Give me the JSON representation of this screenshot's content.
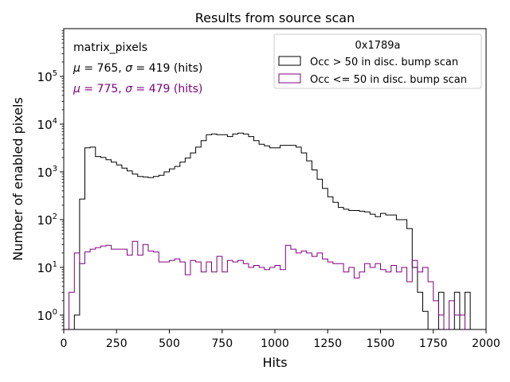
{
  "chart_data": {
    "type": "step-histogram",
    "title": "Results from source scan",
    "xlabel": "Hits",
    "ylabel": "Number of enabled pixels",
    "xlim": [
      0,
      2000
    ],
    "ylim": [
      0.5,
      1000000
    ],
    "yscale": "log",
    "xticks": [
      "0",
      "250",
      "500",
      "750",
      "1000",
      "1250",
      "1500",
      "1750",
      "2000"
    ],
    "yticks": [
      {
        "value": 1,
        "base": "10",
        "exp": "0"
      },
      {
        "value": 10,
        "base": "10",
        "exp": "1"
      },
      {
        "value": 100,
        "base": "10",
        "exp": "2"
      },
      {
        "value": 1000,
        "base": "10",
        "exp": "3"
      },
      {
        "value": 10000,
        "base": "10",
        "exp": "4"
      },
      {
        "value": 100000,
        "base": "10",
        "exp": "5"
      }
    ],
    "bin_width": 25,
    "legend": {
      "title": "0x1789a",
      "placement": "top-right"
    },
    "annotations": {
      "label": "matrix_pixels",
      "stats": [
        {
          "mu": "765",
          "sigma": "419",
          "unit": "(hits)",
          "color": "#000000"
        },
        {
          "mu": "775",
          "sigma": "479",
          "unit": "(hits)",
          "color": "#800080"
        }
      ]
    },
    "series": [
      {
        "name": "Occ > 50 in disc. bump scan",
        "color": "#000000",
        "bin_starts": [
          25,
          50,
          75,
          100,
          125,
          150,
          175,
          200,
          225,
          250,
          275,
          300,
          325,
          350,
          375,
          400,
          425,
          450,
          475,
          500,
          525,
          550,
          575,
          600,
          625,
          650,
          675,
          700,
          725,
          750,
          775,
          800,
          825,
          850,
          875,
          900,
          925,
          950,
          975,
          1000,
          1025,
          1050,
          1075,
          1100,
          1125,
          1150,
          1175,
          1200,
          1225,
          1250,
          1275,
          1300,
          1325,
          1350,
          1375,
          1400,
          1425,
          1450,
          1475,
          1500,
          1525,
          1550,
          1575,
          1600,
          1625,
          1650,
          1675,
          1700,
          1725,
          1750,
          1775,
          1800,
          1825,
          1850,
          1875,
          1900,
          1925,
          1950,
          1975
        ],
        "values": [
          0.5,
          1,
          270,
          3200,
          3300,
          2100,
          2000,
          1800,
          1600,
          1400,
          1200,
          1050,
          900,
          800,
          780,
          760,
          800,
          850,
          1000,
          1150,
          1300,
          1600,
          1950,
          2500,
          3300,
          4500,
          6000,
          6200,
          6000,
          6000,
          5500,
          6200,
          6500,
          6200,
          5500,
          4500,
          3800,
          3500,
          3200,
          3200,
          3600,
          3600,
          3600,
          3300,
          2500,
          1700,
          1100,
          700,
          450,
          300,
          230,
          180,
          165,
          155,
          155,
          150,
          145,
          130,
          115,
          135,
          125,
          125,
          100,
          100,
          65,
          10,
          3,
          1.2,
          0.4,
          0.4,
          3,
          0.4,
          0.4,
          3,
          0.4,
          3,
          0.4,
          0.4,
          0.4
        ]
      },
      {
        "name": "Occ <= 50 in disc. bump scan",
        "color": "#800080",
        "bin_starts": [
          0,
          25,
          50,
          75,
          100,
          125,
          150,
          175,
          200,
          225,
          250,
          275,
          300,
          325,
          350,
          375,
          400,
          425,
          450,
          475,
          500,
          525,
          550,
          575,
          600,
          625,
          650,
          675,
          700,
          725,
          750,
          775,
          800,
          825,
          850,
          875,
          900,
          925,
          950,
          975,
          1000,
          1025,
          1050,
          1075,
          1100,
          1125,
          1150,
          1175,
          1200,
          1225,
          1250,
          1275,
          1300,
          1325,
          1350,
          1375,
          1400,
          1425,
          1450,
          1475,
          1500,
          1525,
          1550,
          1575,
          1600,
          1625,
          1650,
          1675,
          1700,
          1725,
          1750,
          1775,
          1800,
          1825,
          1850,
          1875,
          1900,
          1925,
          1950,
          1975
        ],
        "values": [
          0.4,
          3,
          20,
          12,
          21,
          24,
          26,
          28,
          29,
          24,
          24,
          24,
          18,
          35,
          18,
          30,
          22,
          21,
          13,
          13,
          14,
          15,
          13,
          7,
          14,
          13,
          8,
          13,
          8,
          17,
          8,
          14,
          13,
          14,
          12,
          10,
          11,
          10,
          9,
          10,
          11,
          9,
          29,
          24,
          20,
          22,
          20,
          17,
          20,
          15,
          13,
          12,
          12,
          8,
          10,
          6,
          8,
          12,
          10,
          12,
          9,
          8,
          11,
          8,
          10,
          5,
          14,
          8,
          10,
          5,
          2,
          1,
          0.4,
          2,
          1,
          1,
          0.4,
          0.4,
          0.4,
          0.4
        ]
      }
    ]
  }
}
